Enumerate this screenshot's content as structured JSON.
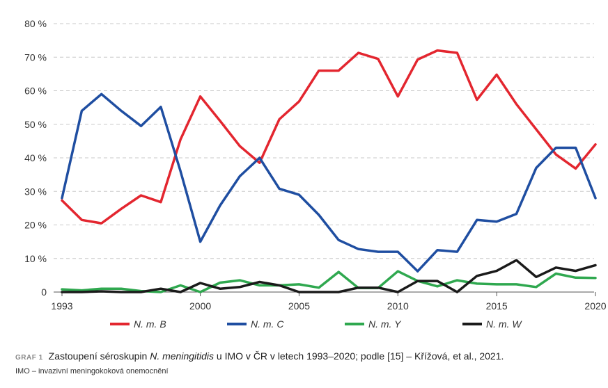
{
  "chart_data": {
    "type": "line",
    "x": [
      1993,
      1994,
      1995,
      1996,
      1997,
      1998,
      1999,
      2000,
      2001,
      2002,
      2003,
      2004,
      2005,
      2006,
      2007,
      2008,
      2009,
      2010,
      2011,
      2012,
      2013,
      2014,
      2015,
      2016,
      2017,
      2018,
      2019,
      2020
    ],
    "x_ticks": [
      1993,
      2000,
      2005,
      2010,
      2015,
      2020
    ],
    "x_tick_labels": [
      "1993",
      "2000",
      "2005",
      "2010",
      "2015",
      "2020"
    ],
    "y_ticks": [
      0,
      10,
      20,
      30,
      40,
      50,
      60,
      70,
      80
    ],
    "y_tick_labels": [
      "0",
      "10 %",
      "20 %",
      "30 %",
      "40 %",
      "50 %",
      "60 %",
      "70 %",
      "80 %"
    ],
    "xlim": [
      1993,
      2020
    ],
    "ylim": [
      0,
      80
    ],
    "grid": "horizontal dashed",
    "legend_position": "bottom",
    "series": [
      {
        "name": "N. m. B",
        "color": "#e3262f",
        "values": [
          27.3,
          21.5,
          20.5,
          24.8,
          28.8,
          26.8,
          45.5,
          58.3,
          51,
          43.5,
          38.5,
          51.5,
          56.8,
          66,
          66,
          71.3,
          69.5,
          58.3,
          69.3,
          72,
          71.3,
          57.3,
          64.8,
          56,
          48.5,
          41,
          36.8,
          44
        ]
      },
      {
        "name": "N. m. C",
        "color": "#1f4ea1",
        "values": [
          28,
          54,
          59,
          54,
          49.5,
          55.2,
          36,
          15,
          25.8,
          34.5,
          40,
          30.8,
          29,
          23,
          15.5,
          12.8,
          12,
          12,
          6.2,
          12.5,
          12,
          21.5,
          21,
          23.3,
          37,
          43,
          43,
          28
        ]
      },
      {
        "name": "N. m. Y",
        "color": "#2fa84f",
        "values": [
          0.8,
          0.5,
          1,
          1,
          0.3,
          0,
          2,
          0,
          2.8,
          3.5,
          2,
          2,
          2.3,
          1.3,
          6,
          1.2,
          1.2,
          6.2,
          3.3,
          1.7,
          3.5,
          2.5,
          2.3,
          2.3,
          1.5,
          5.5,
          4.3,
          4.2
        ]
      },
      {
        "name": "N. m. W",
        "color": "#1a1a1a",
        "values": [
          0,
          0,
          0.2,
          0,
          0,
          1,
          0,
          2.7,
          1,
          1.5,
          3,
          2,
          0,
          0,
          0,
          1.3,
          1.3,
          0,
          3.3,
          3.3,
          0,
          4.8,
          6.3,
          9.5,
          4.5,
          7.3,
          6.3,
          8
        ]
      }
    ]
  },
  "caption": {
    "label": "GRAF 1",
    "text_before": "Zastoupení séroskupin ",
    "species": "N. meningitidis",
    "text_after": " u IMO v ČR v letech 1993–2020; podle [15] – Křížová, et al., 2021.",
    "abbreviation_note": "IMO – invazivní meningokoková onemocnění"
  }
}
